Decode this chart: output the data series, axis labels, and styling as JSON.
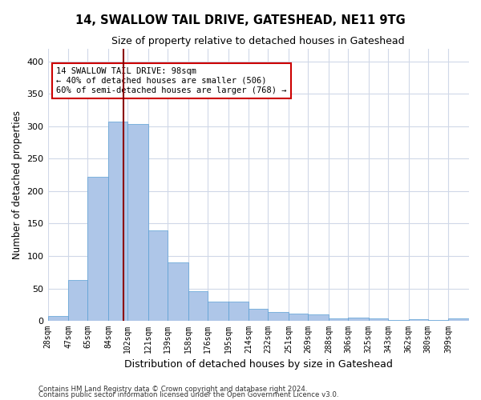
{
  "title": "14, SWALLOW TAIL DRIVE, GATESHEAD, NE11 9TG",
  "subtitle": "Size of property relative to detached houses in Gateshead",
  "xlabel": "Distribution of detached houses by size in Gateshead",
  "ylabel": "Number of detached properties",
  "bins": [
    "28sqm",
    "47sqm",
    "65sqm",
    "84sqm",
    "102sqm",
    "121sqm",
    "139sqm",
    "158sqm",
    "176sqm",
    "195sqm",
    "214sqm",
    "232sqm",
    "251sqm",
    "269sqm",
    "288sqm",
    "306sqm",
    "325sqm",
    "343sqm",
    "362sqm",
    "380sqm",
    "399sqm"
  ],
  "bin_edges": [
    28,
    47,
    65,
    84,
    102,
    121,
    139,
    158,
    176,
    195,
    214,
    232,
    251,
    269,
    288,
    306,
    325,
    343,
    362,
    380,
    399
  ],
  "bar_heights": [
    8,
    63,
    222,
    307,
    303,
    139,
    90,
    46,
    30,
    30,
    19,
    14,
    11,
    10,
    4,
    5,
    4,
    1,
    3,
    1,
    4
  ],
  "bar_color": "#aec6e8",
  "bar_edge_color": "#5a9fd4",
  "vline_x": 98,
  "vline_color": "#8b0000",
  "annotation_line1": "14 SWALLOW TAIL DRIVE: 98sqm",
  "annotation_line2": "← 40% of detached houses are smaller (506)",
  "annotation_line3": "60% of semi-detached houses are larger (768) →",
  "annotation_box_color": "#ffffff",
  "annotation_box_edge": "#cc0000",
  "ylim": [
    0,
    420
  ],
  "yticks": [
    0,
    50,
    100,
    150,
    200,
    250,
    300,
    350,
    400
  ],
  "grid_color": "#d0d8e8",
  "background_color": "#ffffff",
  "footnote1": "Contains HM Land Registry data © Crown copyright and database right 2024.",
  "footnote2": "Contains public sector information licensed under the Open Government Licence v3.0."
}
